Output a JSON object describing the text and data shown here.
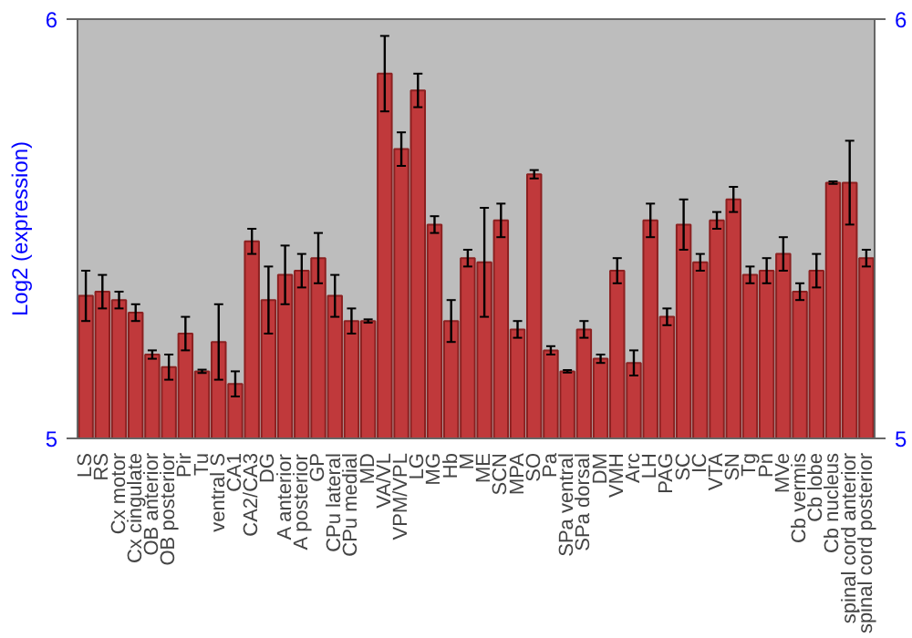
{
  "chart_data": {
    "type": "bar",
    "ylabel": "Log2 (expression)",
    "categories": [
      "LS",
      "RS",
      "Cx motor",
      "Cx cingulate",
      "OB anterior",
      "OB posterior",
      "Pir",
      "Tu",
      "ventral S",
      "CA1",
      "CA2/CA3",
      "DG",
      "A anterior",
      "A posterior",
      "GP",
      "CPu lateral",
      "CPu medial",
      "MD",
      "VA/VL",
      "VPM/VPL",
      "LG",
      "MG",
      "Hb",
      "M",
      "ME",
      "SCN",
      "MPA",
      "SO",
      "Pa",
      "SPa ventral",
      "SPa dorsal",
      "DM",
      "VMH",
      "Arc",
      "LH",
      "PAG",
      "SC",
      "IC",
      "VTA",
      "SN",
      "Tg",
      "Pn",
      "MVe",
      "Cb vermis",
      "Cb lobe",
      "Cb nucleus",
      "spinal cord anterior",
      "spinal cord posterior"
    ],
    "values": [
      5.34,
      5.35,
      5.33,
      5.3,
      5.2,
      5.17,
      5.25,
      5.16,
      5.23,
      5.13,
      5.47,
      5.33,
      5.39,
      5.4,
      5.43,
      5.34,
      5.28,
      5.28,
      5.87,
      5.69,
      5.83,
      5.51,
      5.28,
      5.43,
      5.42,
      5.52,
      5.26,
      5.63,
      5.21,
      5.16,
      5.26,
      5.19,
      5.4,
      5.18,
      5.52,
      5.29,
      5.51,
      5.42,
      5.52,
      5.57,
      5.39,
      5.4,
      5.44,
      5.35,
      5.4,
      5.61,
      5.61,
      5.43
    ],
    "errors": [
      0.06,
      0.04,
      0.02,
      0.02,
      0.01,
      0.03,
      0.04,
      0.004,
      0.09,
      0.03,
      0.03,
      0.08,
      0.07,
      0.04,
      0.06,
      0.05,
      0.03,
      0.004,
      0.09,
      0.04,
      0.04,
      0.02,
      0.05,
      0.02,
      0.13,
      0.04,
      0.02,
      0.01,
      0.01,
      0.003,
      0.02,
      0.01,
      0.03,
      0.03,
      0.04,
      0.02,
      0.06,
      0.02,
      0.02,
      0.03,
      0.02,
      0.03,
      0.04,
      0.02,
      0.04,
      0.003,
      0.1,
      0.02
    ],
    "color": "#c0393b",
    "ylim": [
      5,
      6
    ],
    "yticks": [
      5,
      6
    ],
    "y2lim": [
      5,
      6
    ],
    "y2ticks": [
      5,
      6
    ],
    "grid": false
  }
}
